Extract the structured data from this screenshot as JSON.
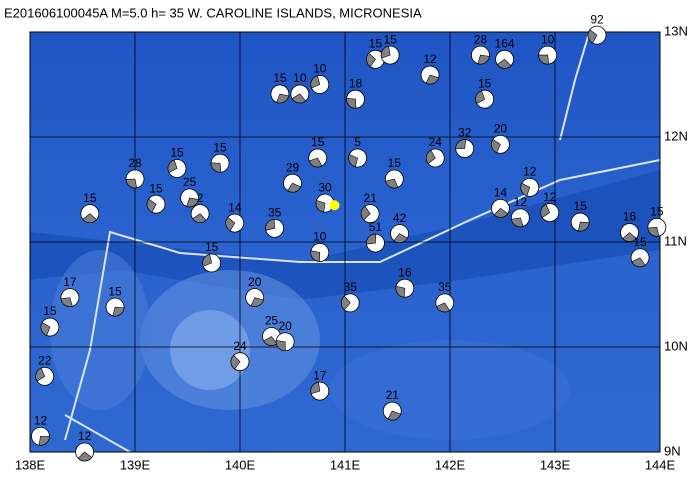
{
  "map": {
    "title": "E201606100045A  M=5.0  h= 35  W. CAROLINE ISLANDS, MICRONESIA",
    "lon_range": [
      138,
      144
    ],
    "lat_range": [
      9,
      13
    ],
    "lon_ticks": [
      {
        "value": 138,
        "label": "138E"
      },
      {
        "value": 139,
        "label": "139E"
      },
      {
        "value": 140,
        "label": "140E"
      },
      {
        "value": 141,
        "label": "141E"
      },
      {
        "value": 142,
        "label": "142E"
      },
      {
        "value": 143,
        "label": "143E"
      },
      {
        "value": 144,
        "label": "144E"
      }
    ],
    "lat_ticks": [
      {
        "value": 9,
        "label": "9N"
      },
      {
        "value": 10,
        "label": "10N"
      },
      {
        "value": 11,
        "label": "11N"
      },
      {
        "value": 12,
        "label": "12N"
      },
      {
        "value": 13,
        "label": "13N"
      }
    ],
    "epicenter": {
      "lon": 140.9,
      "lat": 11.35,
      "color": "#ffff00"
    },
    "events": [
      {
        "lon": 138.1,
        "lat": 9.15,
        "depth": 12
      },
      {
        "lon": 138.52,
        "lat": 9.0,
        "depth": 12
      },
      {
        "lon": 138.38,
        "lat": 10.47,
        "depth": 17
      },
      {
        "lon": 138.19,
        "lat": 10.19,
        "depth": 15
      },
      {
        "lon": 138.14,
        "lat": 9.72,
        "depth": 22
      },
      {
        "lon": 138.81,
        "lat": 10.38,
        "depth": 15
      },
      {
        "lon": 138.57,
        "lat": 11.27,
        "depth": 15
      },
      {
        "lon": 139.0,
        "lat": 11.6,
        "depth": 28
      },
      {
        "lon": 139.2,
        "lat": 11.36,
        "depth": 15
      },
      {
        "lon": 139.4,
        "lat": 11.7,
        "depth": 15
      },
      {
        "lon": 139.52,
        "lat": 11.42,
        "depth": 25
      },
      {
        "lon": 139.62,
        "lat": 11.27,
        "depth": 2
      },
      {
        "lon": 139.81,
        "lat": 11.75,
        "depth": 15
      },
      {
        "lon": 139.95,
        "lat": 11.18,
        "depth": 14
      },
      {
        "lon": 139.73,
        "lat": 10.8,
        "depth": 15
      },
      {
        "lon": 140.14,
        "lat": 10.47,
        "depth": 20
      },
      {
        "lon": 140.3,
        "lat": 10.1,
        "depth": 25
      },
      {
        "lon": 140.43,
        "lat": 10.05,
        "depth": 20
      },
      {
        "lon": 140.0,
        "lat": 9.86,
        "depth": 24
      },
      {
        "lon": 140.76,
        "lat": 9.58,
        "depth": 17
      },
      {
        "lon": 141.45,
        "lat": 9.39,
        "depth": 21
      },
      {
        "lon": 141.95,
        "lat": 10.42,
        "depth": 35
      },
      {
        "lon": 141.57,
        "lat": 10.56,
        "depth": 16
      },
      {
        "lon": 141.05,
        "lat": 10.42,
        "depth": 35
      },
      {
        "lon": 140.33,
        "lat": 11.13,
        "depth": 35
      },
      {
        "lon": 140.5,
        "lat": 11.56,
        "depth": 29
      },
      {
        "lon": 140.74,
        "lat": 11.8,
        "depth": 15
      },
      {
        "lon": 140.81,
        "lat": 11.37,
        "depth": 30
      },
      {
        "lon": 141.24,
        "lat": 11.27,
        "depth": 21
      },
      {
        "lon": 141.29,
        "lat": 10.99,
        "depth": 51
      },
      {
        "lon": 141.52,
        "lat": 11.08,
        "depth": 42
      },
      {
        "lon": 141.47,
        "lat": 11.6,
        "depth": 15
      },
      {
        "lon": 141.12,
        "lat": 11.8,
        "depth": 5
      },
      {
        "lon": 141.86,
        "lat": 11.8,
        "depth": 24
      },
      {
        "lon": 142.14,
        "lat": 11.89,
        "depth": 32
      },
      {
        "lon": 142.48,
        "lat": 11.32,
        "depth": 14
      },
      {
        "lon": 142.67,
        "lat": 11.23,
        "depth": 12
      },
      {
        "lon": 142.76,
        "lat": 11.52,
        "depth": 12
      },
      {
        "lon": 142.95,
        "lat": 11.28,
        "depth": 12
      },
      {
        "lon": 143.24,
        "lat": 11.19,
        "depth": 15
      },
      {
        "lon": 143.71,
        "lat": 11.09,
        "depth": 16
      },
      {
        "lon": 143.97,
        "lat": 11.14,
        "depth": 15
      },
      {
        "lon": 142.48,
        "lat": 11.93,
        "depth": 20
      },
      {
        "lon": 142.33,
        "lat": 12.36,
        "depth": 15
      },
      {
        "lon": 142.29,
        "lat": 12.78,
        "depth": 28
      },
      {
        "lon": 142.52,
        "lat": 12.74,
        "depth": 164
      },
      {
        "lon": 142.93,
        "lat": 12.78,
        "depth": 10
      },
      {
        "lon": 143.4,
        "lat": 12.97,
        "depth": 92
      },
      {
        "lon": 140.76,
        "lat": 12.5,
        "depth": 10
      },
      {
        "lon": 140.38,
        "lat": 12.41,
        "depth": 15
      },
      {
        "lon": 140.57,
        "lat": 12.41,
        "depth": 10
      },
      {
        "lon": 141.1,
        "lat": 12.36,
        "depth": 18
      },
      {
        "lon": 141.29,
        "lat": 12.74,
        "depth": 15
      },
      {
        "lon": 141.43,
        "lat": 12.78,
        "depth": 15
      },
      {
        "lon": 141.81,
        "lat": 12.59,
        "depth": 12
      },
      {
        "lon": 143.81,
        "lat": 10.85,
        "depth": 15
      },
      {
        "lon": 140.76,
        "lat": 10.9,
        "depth": 10
      }
    ]
  }
}
